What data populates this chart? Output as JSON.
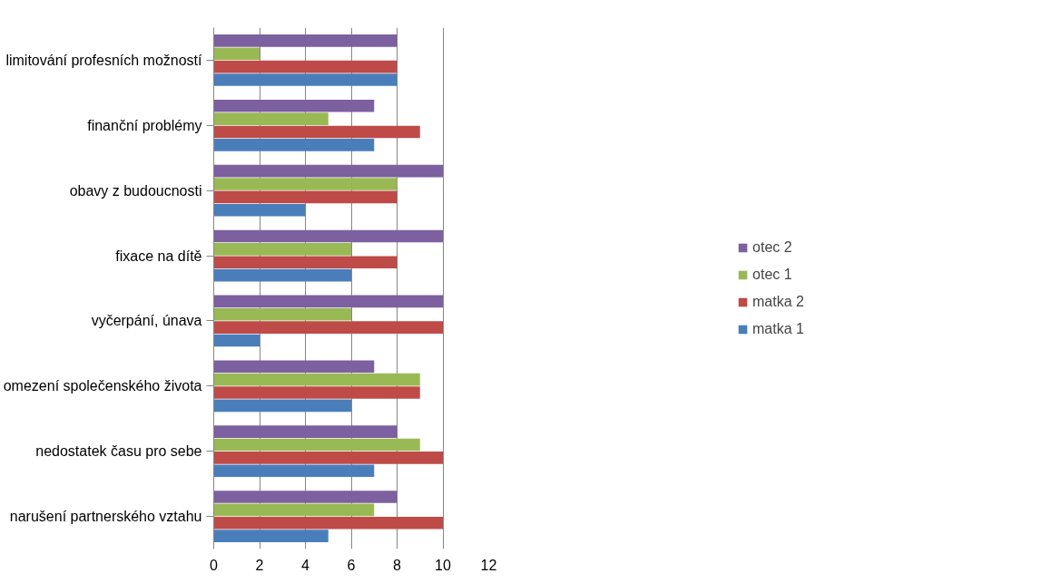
{
  "chart_data": {
    "type": "bar",
    "orientation": "horizontal",
    "categories": [
      "limitování profesních možností",
      "finanční problémy",
      "obavy z budoucnosti",
      "fixace na dítě",
      "vyčerpání, únava",
      "omezení společenského života",
      "nedostatek času pro sebe",
      "narušení partnerského vztahu"
    ],
    "series": [
      {
        "name": "matka 1",
        "color": "#4a7ebb",
        "values": [
          8,
          7,
          4,
          6,
          2,
          6,
          7,
          5
        ]
      },
      {
        "name": "matka 2",
        "color": "#be4b48",
        "values": [
          8,
          9,
          8,
          8,
          10,
          9,
          10,
          10
        ]
      },
      {
        "name": "otec 1",
        "color": "#98b954",
        "values": [
          2,
          5,
          8,
          6,
          6,
          9,
          9,
          7
        ]
      },
      {
        "name": "otec 2",
        "color": "#7d60a0",
        "values": [
          8,
          7,
          10,
          10,
          10,
          7,
          8,
          8
        ]
      }
    ],
    "xlim": [
      0,
      12
    ],
    "xticks": [
      0,
      2,
      4,
      6,
      8,
      10,
      12
    ],
    "grid": "x",
    "legend": "right"
  }
}
